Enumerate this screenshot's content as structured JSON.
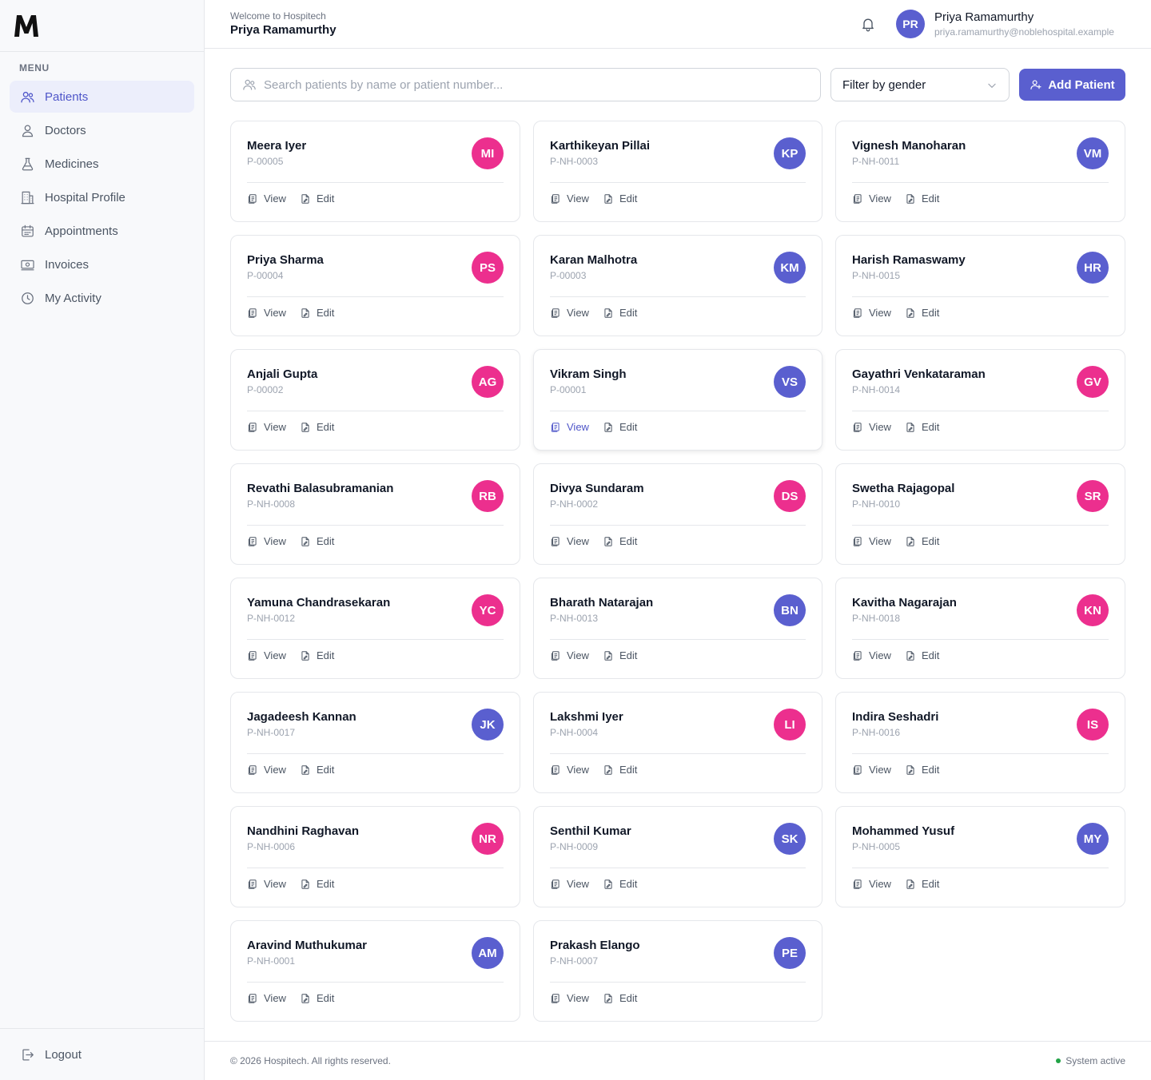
{
  "app": {
    "logo_letter": "M"
  },
  "sidebar": {
    "menu_label": "MENU",
    "items": [
      {
        "label": "Patients",
        "icon": "users-icon",
        "active": true
      },
      {
        "label": "Doctors",
        "icon": "user-icon",
        "active": false
      },
      {
        "label": "Medicines",
        "icon": "flask-icon",
        "active": false
      },
      {
        "label": "Hospital Profile",
        "icon": "building-icon",
        "active": false
      },
      {
        "label": "Appointments",
        "icon": "calendar-icon",
        "active": false
      },
      {
        "label": "Invoices",
        "icon": "banknote-icon",
        "active": false
      },
      {
        "label": "My Activity",
        "icon": "clock-icon",
        "active": false
      }
    ],
    "logout_label": "Logout"
  },
  "header": {
    "welcome": "Welcome to Hospitech",
    "welcome_name": "Priya Ramamurthy",
    "user": {
      "initials": "PR",
      "name": "Priya Ramamurthy",
      "email": "priya.ramamurthy@noblehospital.example"
    }
  },
  "toolbar": {
    "search_placeholder": "Search patients by name or patient number...",
    "search_value": "",
    "filter_label": "Filter by gender",
    "add_label": "Add Patient"
  },
  "card_actions": {
    "view": "View",
    "edit": "Edit"
  },
  "patients": [
    {
      "name": "Meera Iyer",
      "number": "P-00005",
      "initials": "MI",
      "gender": "female"
    },
    {
      "name": "Karthikeyan Pillai",
      "number": "P-NH-0003",
      "initials": "KP",
      "gender": "male"
    },
    {
      "name": "Vignesh Manoharan",
      "number": "P-NH-0011",
      "initials": "VM",
      "gender": "male"
    },
    {
      "name": "Priya Sharma",
      "number": "P-00004",
      "initials": "PS",
      "gender": "female"
    },
    {
      "name": "Karan Malhotra",
      "number": "P-00003",
      "initials": "KM",
      "gender": "male"
    },
    {
      "name": "Harish Ramaswamy",
      "number": "P-NH-0015",
      "initials": "HR",
      "gender": "male"
    },
    {
      "name": "Anjali Gupta",
      "number": "P-00002",
      "initials": "AG",
      "gender": "female"
    },
    {
      "name": "Vikram Singh",
      "number": "P-00001",
      "initials": "VS",
      "gender": "male",
      "hover": true
    },
    {
      "name": "Gayathri Venkataraman",
      "number": "P-NH-0014",
      "initials": "GV",
      "gender": "female"
    },
    {
      "name": "Revathi Balasubramanian",
      "number": "P-NH-0008",
      "initials": "RB",
      "gender": "female"
    },
    {
      "name": "Divya Sundaram",
      "number": "P-NH-0002",
      "initials": "DS",
      "gender": "female"
    },
    {
      "name": "Swetha Rajagopal",
      "number": "P-NH-0010",
      "initials": "SR",
      "gender": "female"
    },
    {
      "name": "Yamuna Chandrasekaran",
      "number": "P-NH-0012",
      "initials": "YC",
      "gender": "female"
    },
    {
      "name": "Bharath Natarajan",
      "number": "P-NH-0013",
      "initials": "BN",
      "gender": "male"
    },
    {
      "name": "Kavitha Nagarajan",
      "number": "P-NH-0018",
      "initials": "KN",
      "gender": "female"
    },
    {
      "name": "Jagadeesh Kannan",
      "number": "P-NH-0017",
      "initials": "JK",
      "gender": "male"
    },
    {
      "name": "Lakshmi Iyer",
      "number": "P-NH-0004",
      "initials": "LI",
      "gender": "female"
    },
    {
      "name": "Indira Seshadri",
      "number": "P-NH-0016",
      "initials": "IS",
      "gender": "female"
    },
    {
      "name": "Nandhini Raghavan",
      "number": "P-NH-0006",
      "initials": "NR",
      "gender": "female"
    },
    {
      "name": "Senthil Kumar",
      "number": "P-NH-0009",
      "initials": "SK",
      "gender": "male"
    },
    {
      "name": "Mohammed Yusuf",
      "number": "P-NH-0005",
      "initials": "MY",
      "gender": "male"
    },
    {
      "name": "Aravind Muthukumar",
      "number": "P-NH-0001",
      "initials": "AM",
      "gender": "male"
    },
    {
      "name": "Prakash Elango",
      "number": "P-NH-0007",
      "initials": "PE",
      "gender": "male"
    }
  ],
  "colors": {
    "accent": "#5a5fcf",
    "female_avatar": "#ec2f8e",
    "male_avatar": "#5a5fcf",
    "status_green": "#22a347"
  },
  "footer": {
    "copyright": "© 2026 Hospitech. All rights reserved.",
    "status": "System active"
  }
}
